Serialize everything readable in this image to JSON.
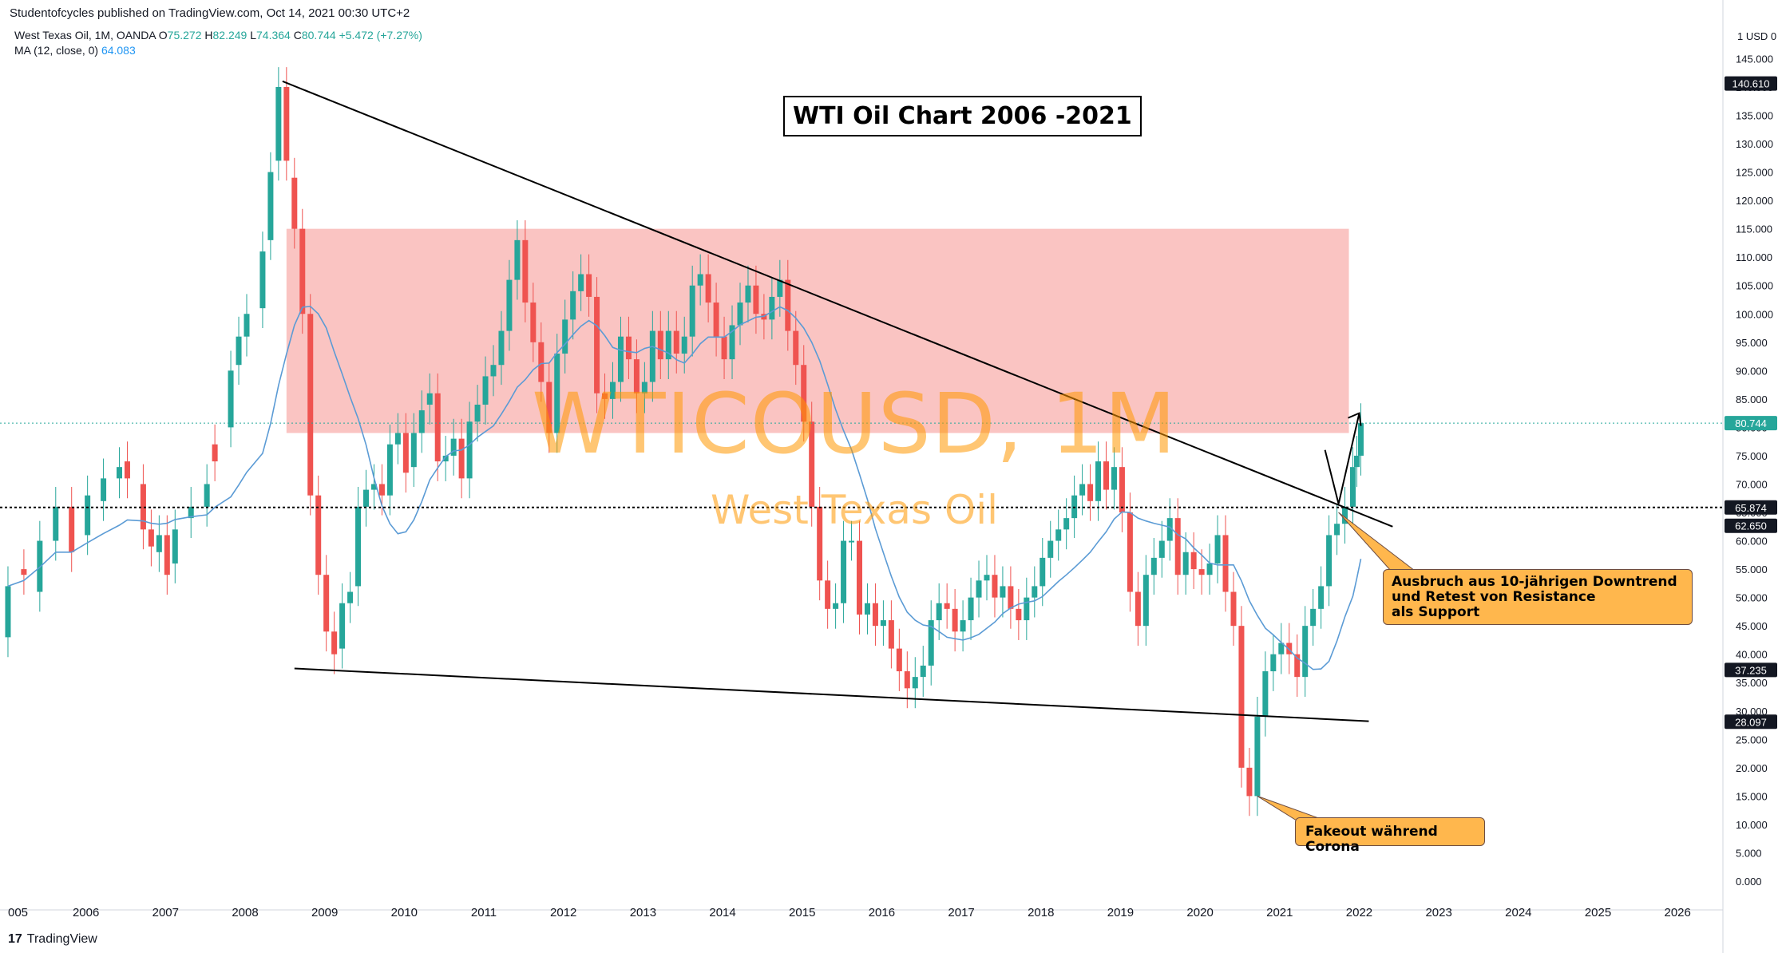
{
  "header": {
    "publish_line": "Studentofcycles published on TradingView.com, Oct 14, 2021 00:30 UTC+2"
  },
  "legend": {
    "symbol_line": "West Texas Oil, 1M, OANDA",
    "o_label": "O",
    "o_value": "75.272",
    "h_label": "H",
    "h_value": "82.249",
    "l_label": "L",
    "l_value": "74.364",
    "c_label": "C",
    "c_value": "80.744",
    "change": "+5.472 (+7.27%)",
    "ma_label": "MA (12, close, 0)",
    "ma_value": "64.083"
  },
  "title_box": "WTI Oil Chart 2006 -2021",
  "watermark": {
    "symbol": "WTICOUSD, 1M",
    "name": "West Texas Oil"
  },
  "callouts": {
    "breakout": [
      "Ausbruch aus 10-jährigen Downtrend",
      "und Retest von Resistance",
      "als Support"
    ],
    "fakeout": "Fakeout während Corona"
  },
  "footer": {
    "logo": "17",
    "brand": "TradingView"
  },
  "colors": {
    "up": "#26a69a",
    "down": "#ef5350",
    "ma": "#5b9bd5",
    "zone": "#f8a5a2",
    "callout": "#ffb74d",
    "watermark": "#ff9800"
  },
  "chart_data": {
    "type": "candlestick",
    "title": "WTI Oil Chart 2006 -2021",
    "currency_label": "USD",
    "y_axis_top_label": "1 USD 0",
    "ylim": [
      -5,
      150
    ],
    "yticks": [
      "0.000",
      "5.000",
      "10.000",
      "15.000",
      "20.000",
      "25.000",
      "30.000",
      "35.000",
      "40.000",
      "45.000",
      "50.000",
      "55.000",
      "60.000",
      "65.000",
      "70.000",
      "75.000",
      "80.000",
      "85.000",
      "90.000",
      "95.000",
      "100.000",
      "105.000",
      "110.000",
      "115.000",
      "120.000",
      "125.000",
      "130.000",
      "135.000",
      "140.000",
      "145.000"
    ],
    "xticks": [
      "005",
      "2006",
      "2007",
      "2008",
      "2009",
      "2010",
      "2011",
      "2012",
      "2013",
      "2014",
      "2015",
      "2016",
      "2017",
      "2018",
      "2019",
      "2020",
      "2021",
      "2022",
      "2023",
      "2024",
      "2025",
      "2026"
    ],
    "price_labels": [
      {
        "label": "140.610",
        "value": 140.61,
        "style": "dark"
      },
      {
        "label": "80.744",
        "value": 80.744,
        "style": "green"
      },
      {
        "label": "65.874",
        "value": 65.874,
        "style": "dark"
      },
      {
        "label": "62.650",
        "value": 62.65,
        "style": "dark"
      },
      {
        "label": "37.235",
        "value": 37.235,
        "style": "dark"
      },
      {
        "label": "28.097",
        "value": 28.097,
        "style": "dark"
      }
    ],
    "horizontal_line": 65.874,
    "resistance_zone": {
      "x_start": 2008.5,
      "x_end": 2021.85,
      "y_low": 79,
      "y_high": 115
    },
    "trendlines": [
      {
        "name": "downtrend",
        "x1": 2008.45,
        "y1": 141,
        "x2": 2022.4,
        "y2": 62.5
      },
      {
        "name": "support",
        "x1": 2008.6,
        "y1": 37.5,
        "x2": 2022.1,
        "y2": 28.2
      }
    ],
    "arrow": {
      "points": [
        [
          2021.55,
          76
        ],
        [
          2021.72,
          66.5
        ],
        [
          2021.98,
          82.5
        ]
      ]
    },
    "ma_period": 12,
    "ma_last": 64.083,
    "candles": [
      [
        2005.0,
        43.0,
        52.0
      ],
      [
        2005.2,
        55.0,
        54.0
      ],
      [
        2005.4,
        51.0,
        60.0
      ],
      [
        2005.6,
        60.0,
        66.0
      ],
      [
        2005.8,
        66.0,
        58.0
      ],
      [
        2006.0,
        61.0,
        68.0
      ],
      [
        2006.2,
        67.0,
        71.0
      ],
      [
        2006.4,
        71.0,
        73.0
      ],
      [
        2006.5,
        74.0,
        71.0
      ],
      [
        2006.7,
        70.0,
        62.0
      ],
      [
        2006.8,
        62.0,
        59.0
      ],
      [
        2006.9,
        58.0,
        61.0
      ],
      [
        2007.0,
        61.0,
        54.0
      ],
      [
        2007.1,
        56.0,
        62.0
      ],
      [
        2007.3,
        64.0,
        66.0
      ],
      [
        2007.5,
        66.0,
        70.0
      ],
      [
        2007.6,
        77.0,
        74.0
      ],
      [
        2007.8,
        80.0,
        90.0
      ],
      [
        2007.9,
        91.0,
        96.0
      ],
      [
        2008.0,
        96.0,
        100.0
      ],
      [
        2008.2,
        101.0,
        111.0
      ],
      [
        2008.3,
        113.0,
        125.0
      ],
      [
        2008.4,
        127.0,
        140.0
      ],
      [
        2008.5,
        140.0,
        127.0
      ],
      [
        2008.6,
        124.0,
        115.0
      ],
      [
        2008.7,
        115.0,
        100.0
      ],
      [
        2008.8,
        100.0,
        68.0
      ],
      [
        2008.9,
        68.0,
        54.0
      ],
      [
        2009.0,
        54.0,
        44.0
      ],
      [
        2009.1,
        44.0,
        40.0
      ],
      [
        2009.2,
        41.0,
        49.0
      ],
      [
        2009.3,
        49.0,
        51.0
      ],
      [
        2009.4,
        52.0,
        66.0
      ],
      [
        2009.5,
        66.0,
        69.0
      ],
      [
        2009.6,
        69.0,
        70.0
      ],
      [
        2009.7,
        70.0,
        68.0
      ],
      [
        2009.8,
        68.0,
        77.0
      ],
      [
        2009.9,
        77.0,
        79.0
      ],
      [
        2010.0,
        79.0,
        72.0
      ],
      [
        2010.1,
        73.0,
        79.0
      ],
      [
        2010.2,
        79.0,
        83.0
      ],
      [
        2010.3,
        84.0,
        86.0
      ],
      [
        2010.4,
        86.0,
        74.0
      ],
      [
        2010.5,
        74.0,
        75.0
      ],
      [
        2010.6,
        75.0,
        78.0
      ],
      [
        2010.7,
        78.0,
        71.0
      ],
      [
        2010.8,
        71.0,
        81.0
      ],
      [
        2010.9,
        81.0,
        84.0
      ],
      [
        2011.0,
        84.0,
        89.0
      ],
      [
        2011.1,
        89.0,
        91.0
      ],
      [
        2011.2,
        91.0,
        97.0
      ],
      [
        2011.3,
        97.0,
        106.0
      ],
      [
        2011.4,
        106.0,
        113.0
      ],
      [
        2011.5,
        113.0,
        102.0
      ],
      [
        2011.6,
        102.0,
        95.0
      ],
      [
        2011.7,
        95.0,
        88.0
      ],
      [
        2011.8,
        88.0,
        79.0
      ],
      [
        2011.9,
        79.0,
        93.0
      ],
      [
        2012.0,
        93.0,
        99.0
      ],
      [
        2012.1,
        99.0,
        104.0
      ],
      [
        2012.2,
        104.0,
        107.0
      ],
      [
        2012.3,
        107.0,
        103.0
      ],
      [
        2012.4,
        103.0,
        86.0
      ],
      [
        2012.5,
        86.0,
        85.0
      ],
      [
        2012.6,
        85.0,
        88.0
      ],
      [
        2012.7,
        88.0,
        96.0
      ],
      [
        2012.8,
        96.0,
        92.0
      ],
      [
        2012.9,
        92.0,
        86.0
      ],
      [
        2013.0,
        86.0,
        88.0
      ],
      [
        2013.1,
        88.0,
        97.0
      ],
      [
        2013.2,
        97.0,
        92.0
      ],
      [
        2013.3,
        92.0,
        97.0
      ],
      [
        2013.4,
        97.0,
        93.0
      ],
      [
        2013.5,
        93.0,
        96.0
      ],
      [
        2013.6,
        96.0,
        105.0
      ],
      [
        2013.7,
        105.0,
        107.0
      ],
      [
        2013.8,
        107.0,
        102.0
      ],
      [
        2013.9,
        102.0,
        96.0
      ],
      [
        2014.0,
        96.0,
        92.0
      ],
      [
        2014.1,
        92.0,
        98.0
      ],
      [
        2014.2,
        98.0,
        102.0
      ],
      [
        2014.3,
        102.0,
        105.0
      ],
      [
        2014.4,
        105.0,
        100.0
      ],
      [
        2014.5,
        100.0,
        99.0
      ],
      [
        2014.6,
        99.0,
        103.0
      ],
      [
        2014.7,
        103.0,
        106.0
      ],
      [
        2014.8,
        106.0,
        97.0
      ],
      [
        2014.9,
        97.0,
        91.0
      ],
      [
        2015.0,
        91.0,
        81.0
      ],
      [
        2015.1,
        81.0,
        66.0
      ],
      [
        2015.2,
        66.0,
        53.0
      ],
      [
        2015.3,
        53.0,
        48.0
      ],
      [
        2015.4,
        48.0,
        49.0
      ],
      [
        2015.5,
        49.0,
        60.0
      ],
      [
        2015.6,
        60.0,
        60.0
      ],
      [
        2015.7,
        60.0,
        47.0
      ],
      [
        2015.8,
        47.0,
        49.0
      ],
      [
        2015.9,
        49.0,
        45.0
      ],
      [
        2016.0,
        45.0,
        46.0
      ],
      [
        2016.1,
        46.0,
        41.0
      ],
      [
        2016.2,
        41.0,
        37.0
      ],
      [
        2016.3,
        37.0,
        34.0
      ],
      [
        2016.4,
        34.0,
        36.0
      ],
      [
        2016.5,
        36.0,
        38.0
      ],
      [
        2016.6,
        38.0,
        46.0
      ],
      [
        2016.7,
        46.0,
        49.0
      ],
      [
        2016.8,
        49.0,
        48.0
      ],
      [
        2016.9,
        48.0,
        44.0
      ],
      [
        2017.0,
        44.0,
        46.0
      ],
      [
        2017.1,
        46.0,
        50.0
      ],
      [
        2017.2,
        50.0,
        53.0
      ],
      [
        2017.3,
        53.0,
        54.0
      ],
      [
        2017.4,
        54.0,
        50.0
      ],
      [
        2017.5,
        50.0,
        52.0
      ],
      [
        2017.6,
        52.0,
        48.0
      ],
      [
        2017.7,
        48.0,
        46.0
      ],
      [
        2017.8,
        46.0,
        50.0
      ],
      [
        2017.9,
        50.0,
        52.0
      ],
      [
        2018.0,
        52.0,
        57.0
      ],
      [
        2018.1,
        57.0,
        60.0
      ],
      [
        2018.2,
        60.0,
        62.0
      ],
      [
        2018.3,
        62.0,
        64.0
      ],
      [
        2018.4,
        64.0,
        68.0
      ],
      [
        2018.5,
        68.0,
        70.0
      ],
      [
        2018.6,
        70.0,
        67.0
      ],
      [
        2018.7,
        67.0,
        74.0
      ],
      [
        2018.8,
        74.0,
        69.0
      ],
      [
        2018.9,
        69.0,
        73.0
      ],
      [
        2019.0,
        73.0,
        65.0
      ],
      [
        2019.1,
        65.0,
        51.0
      ],
      [
        2019.2,
        51.0,
        45.0
      ],
      [
        2019.3,
        45.0,
        54.0
      ],
      [
        2019.4,
        54.0,
        57.0
      ],
      [
        2019.5,
        57.0,
        60.0
      ],
      [
        2019.6,
        60.0,
        64.0
      ],
      [
        2019.7,
        64.0,
        54.0
      ],
      [
        2019.8,
        54.0,
        58.0
      ],
      [
        2019.9,
        58.0,
        55.0
      ],
      [
        2020.0,
        55.0,
        54.0
      ],
      [
        2020.1,
        54.0,
        56.0
      ],
      [
        2020.2,
        56.0,
        61.0
      ],
      [
        2020.3,
        61.0,
        51.0
      ],
      [
        2020.4,
        51.0,
        45.0
      ],
      [
        2020.5,
        45.0,
        20.0
      ],
      [
        2020.6,
        20.0,
        15.0
      ],
      [
        2020.7,
        15.0,
        29.0
      ],
      [
        2020.8,
        29.0,
        37.0
      ],
      [
        2020.9,
        37.0,
        40.0
      ],
      [
        2021.0,
        40.0,
        42.0
      ],
      [
        2021.1,
        42.0,
        40.0
      ],
      [
        2021.2,
        40.0,
        36.0
      ],
      [
        2021.3,
        36.0,
        45.0
      ],
      [
        2021.4,
        45.0,
        48.0
      ],
      [
        2021.5,
        48.0,
        52.0
      ],
      [
        2021.6,
        52.0,
        61.0
      ],
      [
        2021.7,
        61.0,
        63.0
      ],
      [
        2021.8,
        63.0,
        66.0
      ],
      [
        2021.9,
        66.0,
        73.0
      ],
      [
        2021.95,
        73.0,
        75.0
      ],
      [
        2022.0,
        75.0,
        80.744
      ]
    ]
  }
}
